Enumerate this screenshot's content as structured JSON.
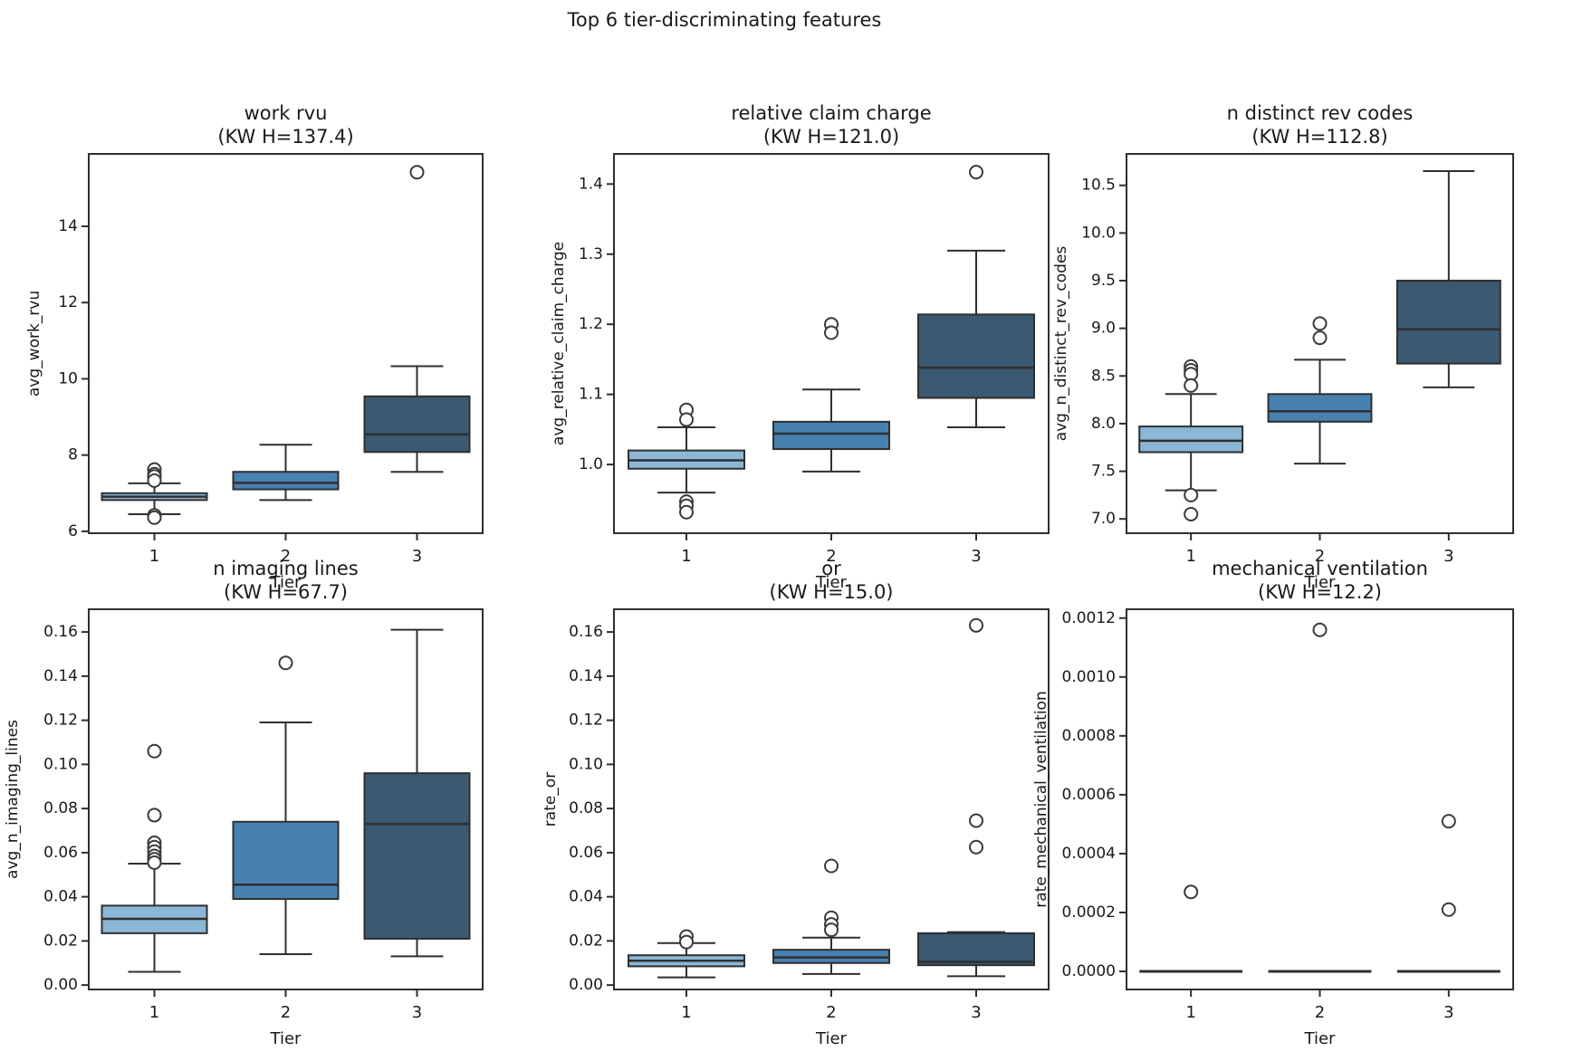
{
  "figure": {
    "suptitle": "Top 6 tier-discriminating features"
  },
  "colors": {
    "tier1": "#8bb6d6",
    "tier2": "#4781b0",
    "tier3": "#3b5970",
    "line": "#2f2f2f",
    "text": "#1a1a1a",
    "flier_stroke": "#3a3a3a",
    "flier_fill": "#ffffff"
  },
  "chart_data": [
    {
      "type": "box",
      "title": "work rvu",
      "subtitle": "(KW H=137.4)",
      "xlabel": "Tier",
      "ylabel": "avg_work_rvu",
      "ylim": [
        5.95,
        15.9
      ],
      "ytick_values": [
        6,
        8,
        10,
        12,
        14
      ],
      "ytick_labels": [
        "6",
        "8",
        "10",
        "12",
        "14"
      ],
      "categories": [
        "1",
        "2",
        "3"
      ],
      "groups": [
        {
          "label": "1",
          "color_key": "tier1",
          "whislo": 6.45,
          "q1": 6.82,
          "med": 6.91,
          "q3": 7.0,
          "whishi": 7.26,
          "outliers": [
            7.62,
            7.5,
            7.44,
            7.33,
            6.42,
            6.36
          ]
        },
        {
          "label": "2",
          "color_key": "tier2",
          "whislo": 6.82,
          "q1": 7.1,
          "med": 7.27,
          "q3": 7.56,
          "whishi": 8.27,
          "outliers": []
        },
        {
          "label": "3",
          "color_key": "tier3",
          "whislo": 7.56,
          "q1": 8.08,
          "med": 8.54,
          "q3": 9.54,
          "whishi": 10.33,
          "outliers": [
            15.42
          ]
        }
      ]
    },
    {
      "type": "box",
      "title": "relative claim charge",
      "subtitle": "(KW H=121.0)",
      "xlabel": "Tier",
      "ylabel": "avg_relative_claim_charge",
      "ylim": [
        0.902,
        1.443
      ],
      "ytick_values": [
        1.0,
        1.1,
        1.2,
        1.3,
        1.4
      ],
      "ytick_labels": [
        "1.0",
        "1.1",
        "1.2",
        "1.3",
        "1.4"
      ],
      "categories": [
        "1",
        "2",
        "3"
      ],
      "groups": [
        {
          "label": "1",
          "color_key": "tier1",
          "whislo": 0.96,
          "q1": 0.994,
          "med": 1.006,
          "q3": 1.02,
          "whishi": 1.053,
          "outliers": [
            1.078,
            1.064,
            0.947,
            0.941,
            0.932
          ]
        },
        {
          "label": "2",
          "color_key": "tier2",
          "whislo": 0.99,
          "q1": 1.022,
          "med": 1.044,
          "q3": 1.061,
          "whishi": 1.107,
          "outliers": [
            1.2,
            1.188
          ]
        },
        {
          "label": "3",
          "color_key": "tier3",
          "whislo": 1.053,
          "q1": 1.095,
          "med": 1.138,
          "q3": 1.214,
          "whishi": 1.305,
          "outliers": [
            1.417
          ]
        }
      ]
    },
    {
      "type": "box",
      "title": "n distinct rev codes",
      "subtitle": "(KW H=112.8)",
      "xlabel": "Tier",
      "ylabel": "avg_n_distinct_rev_codes",
      "ylim": [
        6.85,
        10.83
      ],
      "ytick_values": [
        7.0,
        7.5,
        8.0,
        8.5,
        9.0,
        9.5,
        10.0,
        10.5
      ],
      "ytick_labels": [
        "7.0",
        "7.5",
        "8.0",
        "8.5",
        "9.0",
        "9.5",
        "10.0",
        "10.5"
      ],
      "categories": [
        "1",
        "2",
        "3"
      ],
      "groups": [
        {
          "label": "1",
          "color_key": "tier1",
          "whislo": 7.3,
          "q1": 7.7,
          "med": 7.82,
          "q3": 7.97,
          "whishi": 8.31,
          "outliers": [
            8.6,
            8.56,
            8.52,
            8.4,
            7.25,
            7.05
          ]
        },
        {
          "label": "2",
          "color_key": "tier2",
          "whislo": 7.58,
          "q1": 8.02,
          "med": 8.13,
          "q3": 8.31,
          "whishi": 8.67,
          "outliers": [
            9.05,
            8.9
          ]
        },
        {
          "label": "3",
          "color_key": "tier3",
          "whislo": 8.38,
          "q1": 8.63,
          "med": 8.99,
          "q3": 9.5,
          "whishi": 10.65,
          "outliers": []
        }
      ]
    },
    {
      "type": "box",
      "title": "n imaging lines",
      "subtitle": "(KW H=67.7)",
      "xlabel": "Tier",
      "ylabel": "avg_n_imaging_lines",
      "ylim": [
        -0.002,
        0.1703
      ],
      "ytick_values": [
        0.0,
        0.02,
        0.04,
        0.06,
        0.08,
        0.1,
        0.12,
        0.14,
        0.16
      ],
      "ytick_labels": [
        "0.00",
        "0.02",
        "0.04",
        "0.06",
        "0.08",
        "0.10",
        "0.12",
        "0.14",
        "0.16"
      ],
      "categories": [
        "1",
        "2",
        "3"
      ],
      "groups": [
        {
          "label": "1",
          "color_key": "tier1",
          "whislo": 0.006,
          "q1": 0.0235,
          "med": 0.03,
          "q3": 0.036,
          "whishi": 0.055,
          "outliers": [
            0.106,
            0.077,
            0.0645,
            0.0625,
            0.0605,
            0.0585,
            0.057,
            0.0555
          ]
        },
        {
          "label": "2",
          "color_key": "tier2",
          "whislo": 0.014,
          "q1": 0.039,
          "med": 0.0455,
          "q3": 0.074,
          "whishi": 0.119,
          "outliers": [
            0.146
          ]
        },
        {
          "label": "3",
          "color_key": "tier3",
          "whislo": 0.013,
          "q1": 0.021,
          "med": 0.073,
          "q3": 0.096,
          "whishi": 0.161,
          "outliers": []
        }
      ]
    },
    {
      "type": "box",
      "title": "or",
      "subtitle": "(KW H=15.0)",
      "xlabel": "Tier",
      "ylabel": "rate_or",
      "ylim": [
        -0.002,
        0.1703
      ],
      "ytick_values": [
        0.0,
        0.02,
        0.04,
        0.06,
        0.08,
        0.1,
        0.12,
        0.14,
        0.16
      ],
      "ytick_labels": [
        "0.00",
        "0.02",
        "0.04",
        "0.06",
        "0.08",
        "0.10",
        "0.12",
        "0.14",
        "0.16"
      ],
      "categories": [
        "1",
        "2",
        "3"
      ],
      "groups": [
        {
          "label": "1",
          "color_key": "tier1",
          "whislo": 0.0035,
          "q1": 0.0085,
          "med": 0.011,
          "q3": 0.0135,
          "whishi": 0.019,
          "outliers": [
            0.022,
            0.0195
          ]
        },
        {
          "label": "2",
          "color_key": "tier2",
          "whislo": 0.005,
          "q1": 0.01,
          "med": 0.0125,
          "q3": 0.016,
          "whishi": 0.0215,
          "outliers": [
            0.054,
            0.0305,
            0.0275,
            0.025
          ]
        },
        {
          "label": "3",
          "color_key": "tier3",
          "whislo": 0.004,
          "q1": 0.009,
          "med": 0.0105,
          "q3": 0.0235,
          "whishi": 0.024,
          "outliers": [
            0.163,
            0.0745,
            0.0625
          ]
        }
      ]
    },
    {
      "type": "box",
      "title": "mechanical ventilation",
      "subtitle": "(KW H=12.2)",
      "xlabel": "Tier",
      "ylabel": "rate_mechanical_ventilation",
      "ylim": [
        -6.15e-05,
        0.00123
      ],
      "ytick_values": [
        0.0,
        0.0002,
        0.0004,
        0.0006,
        0.0008,
        0.001,
        0.0012
      ],
      "ytick_labels": [
        "0.0000",
        "0.0002",
        "0.0004",
        "0.0006",
        "0.0008",
        "0.0010",
        "0.0012"
      ],
      "categories": [
        "1",
        "2",
        "3"
      ],
      "groups": [
        {
          "label": "1",
          "color_key": "tier1",
          "whislo": 0.0,
          "q1": 0.0,
          "med": 0.0,
          "q3": 0.0,
          "whishi": 0.0,
          "outliers": [
            0.00027
          ]
        },
        {
          "label": "2",
          "color_key": "tier2",
          "whislo": 0.0,
          "q1": 0.0,
          "med": 0.0,
          "q3": 0.0,
          "whishi": 0.0,
          "outliers": [
            0.00116
          ]
        },
        {
          "label": "3",
          "color_key": "tier3",
          "whislo": 0.0,
          "q1": 0.0,
          "med": 0.0,
          "q3": 0.0,
          "whishi": 0.0,
          "outliers": [
            0.00051,
            0.00021
          ]
        }
      ]
    }
  ]
}
